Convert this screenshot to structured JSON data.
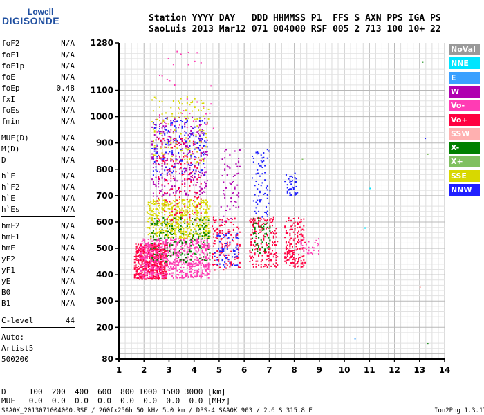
{
  "logo": {
    "top": "Lowell",
    "bottom": "DIGISONDE"
  },
  "header": {
    "line1": "Station YYYY DAY   DDD HHMMSS P1  FFS S AXN PPS IGA PS",
    "line2": "SaoLuis 2013 Mar12 071 004000 RSF 005 2 713 100 10+ 22"
  },
  "params": [
    {
      "name": "foF2",
      "value": "N/A"
    },
    {
      "name": "foF1",
      "value": "N/A"
    },
    {
      "name": "foF1p",
      "value": "N/A"
    },
    {
      "name": "foE",
      "value": "N/A"
    },
    {
      "name": "foEp",
      "value": "0.48"
    },
    {
      "name": "fxI",
      "value": "N/A"
    },
    {
      "name": "foEs",
      "value": "N/A"
    },
    {
      "name": "fmin",
      "value": "N/A"
    },
    {
      "name": "MUF(D)",
      "value": "N/A"
    },
    {
      "name": "M(D)",
      "value": "N/A"
    },
    {
      "name": "D",
      "value": "N/A"
    },
    {
      "name": "h`F",
      "value": "N/A"
    },
    {
      "name": "h`F2",
      "value": "N/A"
    },
    {
      "name": "h`E",
      "value": "N/A"
    },
    {
      "name": "h`Es",
      "value": "N/A"
    },
    {
      "name": "hmF2",
      "value": "N/A"
    },
    {
      "name": "hmF1",
      "value": "N/A"
    },
    {
      "name": "hmE",
      "value": "N/A"
    },
    {
      "name": "yF2",
      "value": "N/A"
    },
    {
      "name": "yF1",
      "value": "N/A"
    },
    {
      "name": "yE",
      "value": "N/A"
    },
    {
      "name": "B0",
      "value": "N/A"
    },
    {
      "name": "B1",
      "value": "N/A"
    },
    {
      "name": "C-level",
      "value": "44"
    }
  ],
  "auto": {
    "line1": "Auto:",
    "line2": "Artist5",
    "line3": "500200"
  },
  "muf_table": {
    "line1": "D     100  200  400  600  800 1000 1500 3000 [km]",
    "line2": "MUF   0.0  0.0  0.0  0.0  0.0  0.0  0.0  0.0 [MHz]"
  },
  "footer": {
    "left": "SAA0K_2013071004000.RSF / 260fx256h 50 kHz 5.0 km / DPS-4 SAA0K 903 / 2.6 S 315.8 E",
    "right": "Ion2Png 1.3.17"
  },
  "legend": [
    {
      "label": "NoVal",
      "color": "#9a9a9a"
    },
    {
      "label": "NNE",
      "color": "#00e5ff"
    },
    {
      "label": "E",
      "color": "#3aa0ff"
    },
    {
      "label": "W",
      "color": "#b000b0"
    },
    {
      "label": "Vo-",
      "color": "#ff3cb4"
    },
    {
      "label": "Vo+",
      "color": "#ff0040"
    },
    {
      "label": "SSW",
      "color": "#ffb0b0"
    },
    {
      "label": "X-",
      "color": "#008000"
    },
    {
      "label": "X+",
      "color": "#80c060"
    },
    {
      "label": "SSE",
      "color": "#d8d800"
    },
    {
      "label": "NNW",
      "color": "#2020ff"
    }
  ],
  "chart_data": {
    "type": "scatter",
    "title": "",
    "xlabel": "",
    "ylabel": "",
    "xlim": [
      1,
      14
    ],
    "ylim": [
      80,
      1280
    ],
    "x_ticks": [
      1,
      2,
      3,
      4,
      5,
      6,
      7,
      8,
      9,
      10,
      11,
      12,
      13,
      14
    ],
    "y_ticks": [
      80,
      200,
      300,
      400,
      500,
      600,
      700,
      800,
      900,
      1000,
      1100,
      1280
    ],
    "grid": true,
    "clusters": [
      {
        "x": [
          1.6,
          2.9
        ],
        "y": [
          385,
          520
        ],
        "color": "#ff0040",
        "density": 520
      },
      {
        "x": [
          1.8,
          4.6
        ],
        "y": [
          390,
          540
        ],
        "color": "#ff3cb4",
        "density": 700
      },
      {
        "x": [
          2.1,
          4.6
        ],
        "y": [
          540,
          690
        ],
        "color": "#d8d800",
        "density": 500
      },
      {
        "x": [
          2.2,
          4.6
        ],
        "y": [
          450,
          620
        ],
        "color": "#008000",
        "density": 180
      },
      {
        "x": [
          2.3,
          4.5
        ],
        "y": [
          700,
          1000
        ],
        "color": "#b000b0",
        "density": 300
      },
      {
        "x": [
          2.3,
          4.5
        ],
        "y": [
          780,
          1000
        ],
        "color": "#2020ff",
        "density": 160
      },
      {
        "x": [
          2.5,
          4.3
        ],
        "y": [
          600,
          920
        ],
        "color": "#ff0040",
        "density": 160
      },
      {
        "x": [
          2.3,
          4.6
        ],
        "y": [
          820,
          1080
        ],
        "color": "#d8d800",
        "density": 120
      },
      {
        "x": [
          2.5,
          4.8
        ],
        "y": [
          920,
          1250
        ],
        "color": "#ff3cb4",
        "density": 40
      },
      {
        "x": [
          4.7,
          5.8
        ],
        "y": [
          420,
          620
        ],
        "color": "#ff0040",
        "density": 140
      },
      {
        "x": [
          4.8,
          5.8
        ],
        "y": [
          430,
          560
        ],
        "color": "#2020ff",
        "density": 60
      },
      {
        "x": [
          5.0,
          5.8
        ],
        "y": [
          600,
          880
        ],
        "color": "#b000b0",
        "density": 60
      },
      {
        "x": [
          6.2,
          7.3
        ],
        "y": [
          430,
          620
        ],
        "color": "#ff0040",
        "density": 200
      },
      {
        "x": [
          6.3,
          7.0
        ],
        "y": [
          620,
          880
        ],
        "color": "#2020ff",
        "density": 70
      },
      {
        "x": [
          6.3,
          7.0
        ],
        "y": [
          480,
          620
        ],
        "color": "#008000",
        "density": 60
      },
      {
        "x": [
          7.6,
          8.4
        ],
        "y": [
          430,
          620
        ],
        "color": "#ff0040",
        "density": 170
      },
      {
        "x": [
          7.6,
          8.1
        ],
        "y": [
          700,
          790
        ],
        "color": "#2020ff",
        "density": 40
      },
      {
        "x": [
          8.2,
          9.0
        ],
        "y": [
          480,
          540
        ],
        "color": "#ff3cb4",
        "density": 30
      }
    ],
    "outliers": [
      {
        "x": 13.1,
        "y": 1210,
        "color": "#008000"
      },
      {
        "x": 13.2,
        "y": 920,
        "color": "#2020ff"
      },
      {
        "x": 13.3,
        "y": 860,
        "color": "#80c060"
      },
      {
        "x": 10.4,
        "y": 160,
        "color": "#3aa0ff"
      },
      {
        "x": 13.3,
        "y": 140,
        "color": "#008000"
      },
      {
        "x": 13.0,
        "y": 355,
        "color": "#ffb0b0"
      },
      {
        "x": 10.8,
        "y": 580,
        "color": "#00e5ff"
      },
      {
        "x": 11.0,
        "y": 730,
        "color": "#00e5ff"
      },
      {
        "x": 8.3,
        "y": 840,
        "color": "#80c060"
      }
    ]
  }
}
